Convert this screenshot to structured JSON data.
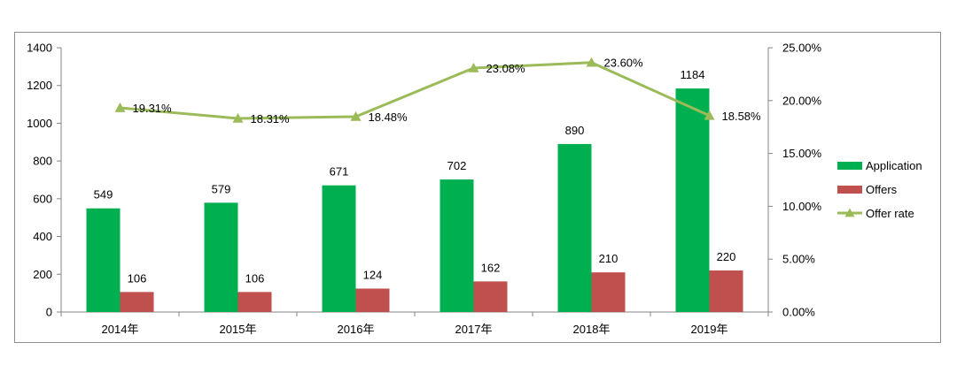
{
  "chart_data": {
    "type": "bar",
    "categories": [
      "2014年",
      "2015年",
      "2016年",
      "2017年",
      "2018年",
      "2019年"
    ],
    "series": [
      {
        "name": "Application",
        "type": "bar",
        "axis": "left",
        "color": "#00b050",
        "values": [
          549,
          579,
          671,
          702,
          890,
          1184
        ],
        "labels": [
          "549",
          "579",
          "671",
          "702",
          "890",
          "1184"
        ]
      },
      {
        "name": "Offers",
        "type": "bar",
        "axis": "left",
        "color": "#c0504d",
        "values": [
          106,
          106,
          124,
          162,
          210,
          220
        ],
        "labels": [
          "106",
          "106",
          "124",
          "162",
          "210",
          "220"
        ]
      },
      {
        "name": "Offer rate",
        "type": "line",
        "axis": "right",
        "color": "#9bbb59",
        "marker": "triangle",
        "values": [
          19.31,
          18.31,
          18.48,
          23.08,
          23.6,
          18.58
        ],
        "labels": [
          "19.31%",
          "18.31%",
          "18.48%",
          "23.08%",
          "23.60%",
          "18.58%"
        ]
      }
    ],
    "title": "",
    "xlabel": "",
    "ylabel": "",
    "ylim": [
      0,
      1400
    ],
    "y_ticks": [
      "0",
      "200",
      "400",
      "600",
      "800",
      "1000",
      "1200",
      "1400"
    ],
    "y2lim": [
      0,
      25
    ],
    "y2_ticks": [
      "0.00%",
      "5.00%",
      "10.00%",
      "15.00%",
      "20.00%",
      "25.00%"
    ],
    "grid": false,
    "legend": "right"
  }
}
